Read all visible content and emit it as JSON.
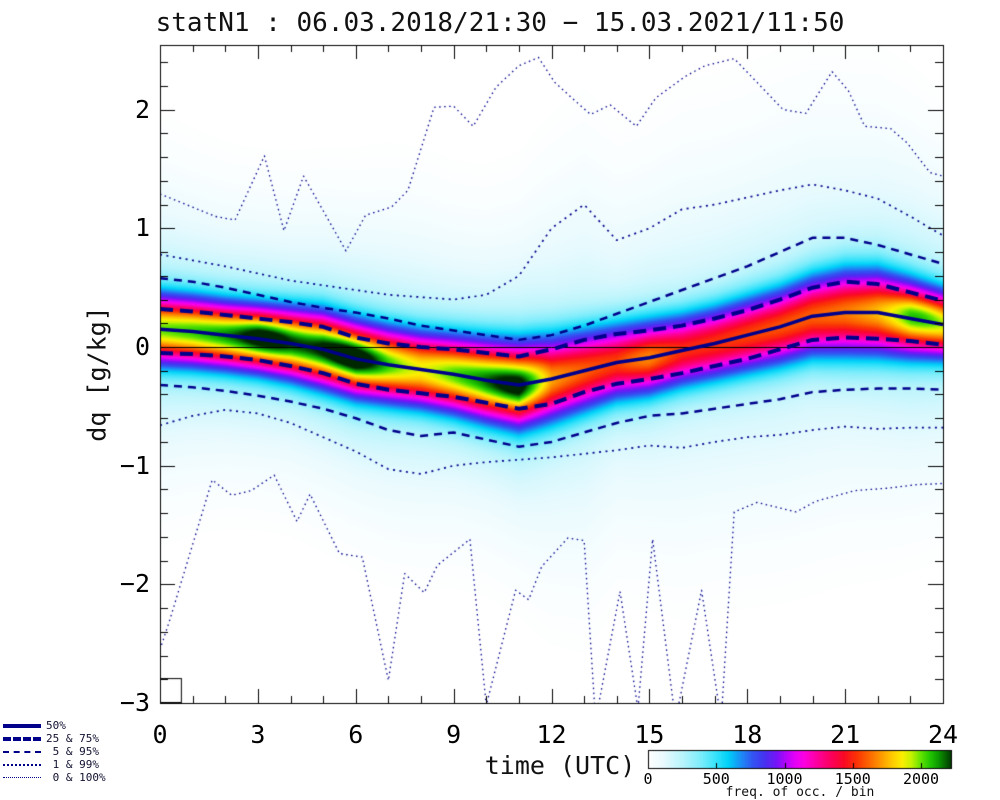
{
  "title": "statN1 : 06.03.2018/21:30 − 15.03.2021/11:50",
  "axes": {
    "xlabel": "time (UTC)",
    "ylabel": "dq [g/kg]",
    "x_tick_values": [
      0,
      3,
      6,
      9,
      12,
      15,
      18,
      21,
      24
    ],
    "x_tick_labels": [
      "0",
      "3",
      "6",
      "9",
      "12",
      "15",
      "18",
      "21",
      "24"
    ],
    "x_minor_step_hours": 1,
    "y_tick_values": [
      2,
      1,
      0,
      -1,
      -2,
      -3
    ],
    "y_tick_labels": [
      "2",
      "1",
      "0",
      "−1",
      "−2",
      "−3"
    ],
    "y_minor_step": 0.2,
    "xlim": [
      0,
      24
    ],
    "ylim": [
      -3.0,
      2.545
    ],
    "zero_line": true
  },
  "legend": {
    "items": [
      {
        "style": "solid-thick",
        "label": "50%"
      },
      {
        "style": "dash-thick",
        "label": "25 & 75%"
      },
      {
        "style": "dash-thin",
        "label": " 5 & 95%"
      },
      {
        "style": "dot",
        "label": " 1 & 99%"
      },
      {
        "style": "dot-fine",
        "label": " 0 & 100%"
      }
    ]
  },
  "colorbar": {
    "label": "freq. of occ. / bin",
    "tick_values": [
      0,
      500,
      1000,
      1500,
      2000
    ],
    "tick_labels": [
      "0",
      "500",
      "1000",
      "1500",
      "2000"
    ],
    "max_value": 2240
  },
  "colors": {
    "percentile_line": "#00008b",
    "axis": "#000000",
    "background": "#ffffff"
  },
  "chart_data": {
    "type": "heatmap",
    "title": "statN1 : 06.03.2018/21:30 − 15.03.2021/11:50",
    "xlabel": "time (UTC)",
    "ylabel": "dq [g/kg]",
    "zlabel": "freq. of occ. / bin",
    "xlim": [
      0,
      24
    ],
    "ylim": [
      -3.0,
      2.545
    ],
    "zlim": [
      0,
      2240
    ],
    "x_hours": [
      0,
      1,
      2,
      3,
      4,
      5,
      6,
      7,
      8,
      9,
      10,
      11,
      12,
      13,
      14,
      15,
      16,
      17,
      18,
      19,
      20,
      21,
      22,
      23,
      24
    ],
    "series": [
      {
        "name": "median_50",
        "values": [
          0.15,
          0.13,
          0.1,
          0.07,
          0.03,
          -0.02,
          -0.1,
          -0.15,
          -0.19,
          -0.23,
          -0.28,
          -0.32,
          -0.27,
          -0.2,
          -0.13,
          -0.09,
          -0.03,
          0.03,
          0.1,
          0.17,
          0.26,
          0.29,
          0.29,
          0.24,
          0.19
        ]
      },
      {
        "name": "p75",
        "values": [
          0.32,
          0.3,
          0.27,
          0.24,
          0.21,
          0.17,
          0.08,
          0.03,
          0.0,
          -0.02,
          -0.05,
          -0.08,
          -0.02,
          0.06,
          0.11,
          0.14,
          0.18,
          0.24,
          0.31,
          0.4,
          0.5,
          0.55,
          0.53,
          0.46,
          0.39
        ]
      },
      {
        "name": "p25",
        "values": [
          -0.05,
          -0.06,
          -0.08,
          -0.11,
          -0.16,
          -0.22,
          -0.31,
          -0.36,
          -0.39,
          -0.42,
          -0.47,
          -0.52,
          -0.48,
          -0.38,
          -0.31,
          -0.27,
          -0.22,
          -0.16,
          -0.1,
          -0.02,
          0.06,
          0.08,
          0.07,
          0.05,
          0.02
        ]
      },
      {
        "name": "p95",
        "values": [
          0.58,
          0.55,
          0.5,
          0.44,
          0.38,
          0.33,
          0.29,
          0.24,
          0.18,
          0.14,
          0.1,
          0.06,
          0.1,
          0.18,
          0.28,
          0.38,
          0.48,
          0.58,
          0.68,
          0.8,
          0.92,
          0.92,
          0.86,
          0.78,
          0.7
        ]
      },
      {
        "name": "p5",
        "values": [
          -0.32,
          -0.34,
          -0.37,
          -0.41,
          -0.46,
          -0.52,
          -0.6,
          -0.7,
          -0.75,
          -0.72,
          -0.78,
          -0.84,
          -0.8,
          -0.72,
          -0.64,
          -0.58,
          -0.56,
          -0.52,
          -0.48,
          -0.44,
          -0.38,
          -0.36,
          -0.35,
          -0.35,
          -0.36
        ]
      },
      {
        "name": "p99",
        "values": [
          0.78,
          0.73,
          0.68,
          0.62,
          0.56,
          0.52,
          0.48,
          0.44,
          0.42,
          0.4,
          0.44,
          0.6,
          1.0,
          1.2,
          0.9,
          1.0,
          1.16,
          1.2,
          1.26,
          1.32,
          1.37,
          1.32,
          1.25,
          1.1,
          0.94
        ]
      },
      {
        "name": "p1",
        "values": [
          -0.66,
          -0.58,
          -0.53,
          -0.56,
          -0.64,
          -0.76,
          -0.88,
          -1.03,
          -1.07,
          -1.0,
          -0.97,
          -0.95,
          -0.93,
          -0.9,
          -0.87,
          -0.83,
          -0.85,
          -0.8,
          -0.76,
          -0.74,
          -0.7,
          -0.67,
          -0.69,
          -0.68,
          -0.68
        ]
      }
    ],
    "max_curve_vertices": [
      [
        0,
        1.29
      ],
      [
        1.7,
        1.1
      ],
      [
        2.3,
        1.07
      ],
      [
        3.2,
        1.61
      ],
      [
        3.8,
        0.98
      ],
      [
        4.4,
        1.44
      ],
      [
        5.7,
        0.81
      ],
      [
        6.3,
        1.11
      ],
      [
        7.1,
        1.18
      ],
      [
        7.6,
        1.32
      ],
      [
        8.4,
        2.02
      ],
      [
        9.0,
        2.03
      ],
      [
        9.6,
        1.86
      ],
      [
        10.3,
        2.19
      ],
      [
        11.0,
        2.37
      ],
      [
        11.6,
        2.44
      ],
      [
        12.1,
        2.23
      ],
      [
        12.7,
        2.08
      ],
      [
        13.2,
        1.96
      ],
      [
        13.8,
        2.04
      ],
      [
        14.6,
        1.86
      ],
      [
        15.2,
        2.1
      ],
      [
        16.1,
        2.28
      ],
      [
        16.7,
        2.37
      ],
      [
        17.6,
        2.43
      ],
      [
        18.3,
        2.23
      ],
      [
        19.1,
        2.0
      ],
      [
        19.8,
        1.97
      ],
      [
        20.6,
        2.32
      ],
      [
        21.1,
        2.16
      ],
      [
        21.6,
        1.86
      ],
      [
        22.4,
        1.84
      ],
      [
        22.9,
        1.72
      ],
      [
        23.6,
        1.47
      ],
      [
        24,
        1.44
      ]
    ],
    "min_curve_vertices": [
      [
        0,
        -2.55
      ],
      [
        0.3,
        -2.3
      ],
      [
        1.6,
        -1.12
      ],
      [
        2.2,
        -1.25
      ],
      [
        2.8,
        -1.21
      ],
      [
        3.5,
        -1.08
      ],
      [
        4.2,
        -1.47
      ],
      [
        4.6,
        -1.24
      ],
      [
        5.5,
        -1.74
      ],
      [
        6.2,
        -1.77
      ],
      [
        7.0,
        -2.81
      ],
      [
        7.5,
        -1.91
      ],
      [
        8.1,
        -2.07
      ],
      [
        8.5,
        -1.84
      ],
      [
        9.5,
        -1.62
      ],
      [
        10.0,
        -3.02
      ],
      [
        10.9,
        -2.05
      ],
      [
        11.3,
        -2.13
      ],
      [
        11.7,
        -1.85
      ],
      [
        12.5,
        -1.61
      ],
      [
        13.0,
        -1.63
      ],
      [
        13.35,
        -3.15
      ],
      [
        14.1,
        -2.06
      ],
      [
        14.65,
        -3.05
      ],
      [
        15.1,
        -1.62
      ],
      [
        15.8,
        -3.15
      ],
      [
        16.6,
        -2.05
      ],
      [
        17.2,
        -3.15
      ],
      [
        17.6,
        -1.39
      ],
      [
        18.3,
        -1.31
      ],
      [
        18.9,
        -1.35
      ],
      [
        19.5,
        -1.39
      ],
      [
        20.1,
        -1.3
      ],
      [
        21.3,
        -1.21
      ],
      [
        22.3,
        -1.19
      ],
      [
        23.2,
        -1.16
      ],
      [
        24,
        -1.15
      ]
    ],
    "peak_frequency_by_hour": [
      2000,
      2050,
      2120,
      2200,
      2150,
      2220,
      2220,
      2050,
      1980,
      2050,
      2120,
      2160,
      1700,
      1600,
      1520,
      1600,
      1500,
      1520,
      1550,
      1580,
      1600,
      1650,
      1750,
      1900,
      1850
    ],
    "hotspots": [
      [
        3.3,
        0.05,
        0.09
      ],
      [
        5.9,
        0.02,
        0.1
      ],
      [
        10.9,
        -0.03,
        0.09
      ],
      [
        14.8,
        -0.02,
        0.05
      ],
      [
        23.3,
        0.06,
        0.11
      ],
      [
        8.0,
        0.0,
        -0.05
      ]
    ],
    "corner_box": {
      "t": [
        0,
        0.64
      ],
      "v": [
        -2.79,
        -3.0
      ]
    },
    "colormap_stops": [
      [
        0.0,
        255,
        255,
        255
      ],
      [
        0.05,
        232,
        250,
        254
      ],
      [
        0.11,
        185,
        244,
        252
      ],
      [
        0.17,
        125,
        237,
        251
      ],
      [
        0.22,
        55,
        227,
        250
      ],
      [
        0.26,
        0,
        210,
        248
      ],
      [
        0.3,
        25,
        145,
        246
      ],
      [
        0.34,
        50,
        85,
        242
      ],
      [
        0.38,
        70,
        50,
        240
      ],
      [
        0.42,
        120,
        20,
        248
      ],
      [
        0.45,
        180,
        5,
        250
      ],
      [
        0.48,
        230,
        0,
        248
      ],
      [
        0.51,
        252,
        0,
        225
      ],
      [
        0.55,
        252,
        0,
        160
      ],
      [
        0.6,
        252,
        0,
        90
      ],
      [
        0.64,
        250,
        10,
        35
      ],
      [
        0.68,
        250,
        50,
        5
      ],
      [
        0.72,
        252,
        100,
        0
      ],
      [
        0.76,
        253,
        152,
        0
      ],
      [
        0.8,
        254,
        205,
        0
      ],
      [
        0.83,
        252,
        238,
        0
      ],
      [
        0.86,
        195,
        242,
        0
      ],
      [
        0.89,
        100,
        228,
        0
      ],
      [
        0.92,
        35,
        200,
        0
      ],
      [
        0.95,
        12,
        150,
        0
      ],
      [
        0.98,
        4,
        80,
        0
      ],
      [
        1.0,
        0,
        40,
        0
      ]
    ]
  }
}
